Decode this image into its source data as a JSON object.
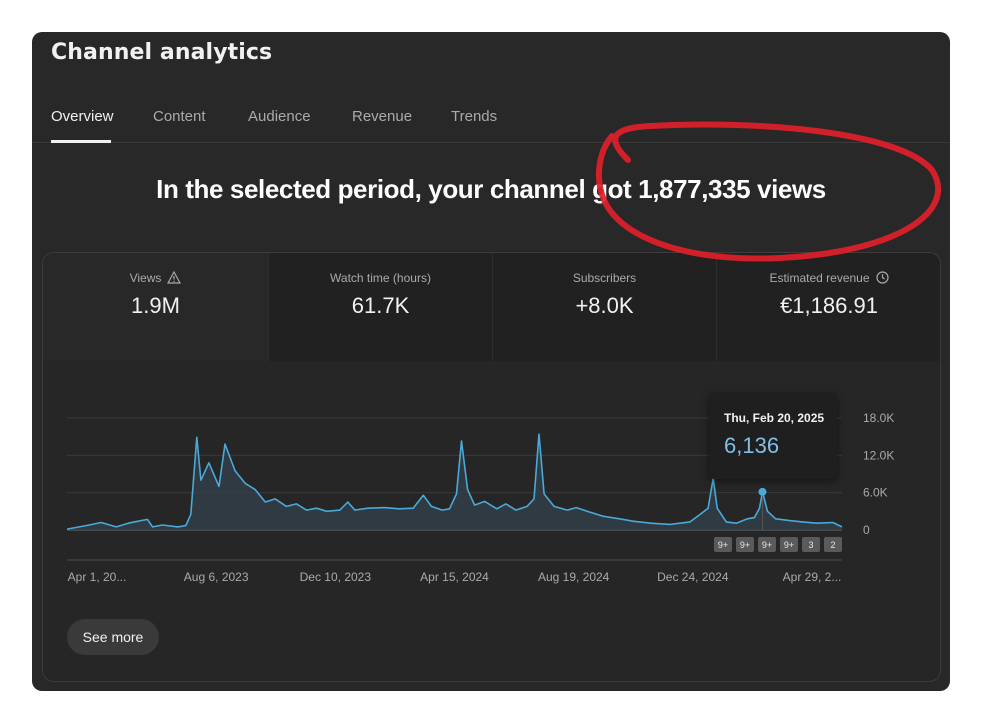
{
  "header": {
    "title": "Channel analytics"
  },
  "tabs": [
    {
      "label": "Overview",
      "active": true
    },
    {
      "label": "Content",
      "active": false
    },
    {
      "label": "Audience",
      "active": false
    },
    {
      "label": "Revenue",
      "active": false
    },
    {
      "label": "Trends",
      "active": false
    }
  ],
  "summary": {
    "headline": "In the selected period, your channel got 1,877,335 views"
  },
  "metrics": [
    {
      "label": "Views",
      "value": "1.9M",
      "icon": "warning-icon",
      "selected": true
    },
    {
      "label": "Watch time (hours)",
      "value": "61.7K",
      "selected": false
    },
    {
      "label": "Subscribers",
      "value": "+8.0K",
      "selected": false
    },
    {
      "label": "Estimated revenue",
      "value": "€1,186.91",
      "icon": "clock-icon",
      "selected": false
    }
  ],
  "tooltip": {
    "date": "Thu, Feb 20, 2025",
    "value": "6,136"
  },
  "badges": [
    "9+",
    "9+",
    "9+",
    "9+",
    "3",
    "2"
  ],
  "see_more_label": "See more",
  "colors": {
    "line": "#4aa9d8",
    "area": "#33404a",
    "panel": "#282828",
    "annotation": "#e0202a"
  },
  "chart_data": {
    "type": "area",
    "x_ticks": [
      "Apr 1, 20...",
      "Aug 6, 2023",
      "Dec 10, 2023",
      "Apr 15, 2024",
      "Aug 19, 2024",
      "Dec 24, 2024",
      "Apr 29, 2..."
    ],
    "y_ticks": [
      "0",
      "6.0K",
      "12.0K",
      "18.0K"
    ],
    "ylim": [
      0,
      18000
    ],
    "grid": true,
    "x_range": [
      "2023-04-01",
      "2025-05-10"
    ],
    "series": [
      {
        "points": [
          [
            "2023-04-01",
            150
          ],
          [
            "2023-04-20",
            700
          ],
          [
            "2023-05-05",
            1200
          ],
          [
            "2023-05-20",
            500
          ],
          [
            "2023-06-01",
            1100
          ],
          [
            "2023-06-10",
            1400
          ],
          [
            "2023-06-20",
            1700
          ],
          [
            "2023-06-25",
            500
          ],
          [
            "2023-07-05",
            800
          ],
          [
            "2023-07-20",
            500
          ],
          [
            "2023-07-28",
            700
          ],
          [
            "2023-08-02",
            2500
          ],
          [
            "2023-08-08",
            14900
          ],
          [
            "2023-08-12",
            8000
          ],
          [
            "2023-08-20",
            10800
          ],
          [
            "2023-08-30",
            7000
          ],
          [
            "2023-09-05",
            13800
          ],
          [
            "2023-09-15",
            9500
          ],
          [
            "2023-09-25",
            7500
          ],
          [
            "2023-10-05",
            6500
          ],
          [
            "2023-10-15",
            4500
          ],
          [
            "2023-10-25",
            5000
          ],
          [
            "2023-11-05",
            3800
          ],
          [
            "2023-11-15",
            4200
          ],
          [
            "2023-11-25",
            3200
          ],
          [
            "2023-12-05",
            3500
          ],
          [
            "2023-12-15",
            3000
          ],
          [
            "2023-12-28",
            3200
          ],
          [
            "2024-01-05",
            4500
          ],
          [
            "2024-01-12",
            3200
          ],
          [
            "2024-01-25",
            3500
          ],
          [
            "2024-02-10",
            3600
          ],
          [
            "2024-02-25",
            3400
          ],
          [
            "2024-03-10",
            3500
          ],
          [
            "2024-03-20",
            5600
          ],
          [
            "2024-03-28",
            3800
          ],
          [
            "2024-04-08",
            3200
          ],
          [
            "2024-04-15",
            3400
          ],
          [
            "2024-04-22",
            5800
          ],
          [
            "2024-04-27",
            14300
          ],
          [
            "2024-05-03",
            6500
          ],
          [
            "2024-05-10",
            4000
          ],
          [
            "2024-05-20",
            4600
          ],
          [
            "2024-06-01",
            3400
          ],
          [
            "2024-06-10",
            4200
          ],
          [
            "2024-06-20",
            3200
          ],
          [
            "2024-07-01",
            3800
          ],
          [
            "2024-07-08",
            5000
          ],
          [
            "2024-07-13",
            15400
          ],
          [
            "2024-07-18",
            5800
          ],
          [
            "2024-07-28",
            3800
          ],
          [
            "2024-08-10",
            3200
          ],
          [
            "2024-08-19",
            3600
          ],
          [
            "2024-09-01",
            2900
          ],
          [
            "2024-09-15",
            2200
          ],
          [
            "2024-10-01",
            1800
          ],
          [
            "2024-10-15",
            1400
          ],
          [
            "2024-11-01",
            1100
          ],
          [
            "2024-11-20",
            900
          ],
          [
            "2024-12-10",
            1300
          ],
          [
            "2024-12-20",
            2500
          ],
          [
            "2024-12-28",
            3500
          ],
          [
            "2025-01-02",
            8300
          ],
          [
            "2025-01-06",
            3500
          ],
          [
            "2025-01-15",
            1300
          ],
          [
            "2025-01-25",
            1100
          ],
          [
            "2025-02-05",
            1800
          ],
          [
            "2025-02-12",
            2000
          ],
          [
            "2025-02-17",
            3500
          ],
          [
            "2025-02-20",
            6136
          ],
          [
            "2025-02-25",
            3000
          ],
          [
            "2025-03-05",
            1800
          ],
          [
            "2025-03-20",
            1500
          ],
          [
            "2025-04-01",
            1300
          ],
          [
            "2025-04-15",
            1100
          ],
          [
            "2025-05-01",
            1200
          ],
          [
            "2025-05-10",
            500
          ]
        ]
      }
    ],
    "highlight": {
      "x": "2025-02-20",
      "y": 6136
    }
  }
}
